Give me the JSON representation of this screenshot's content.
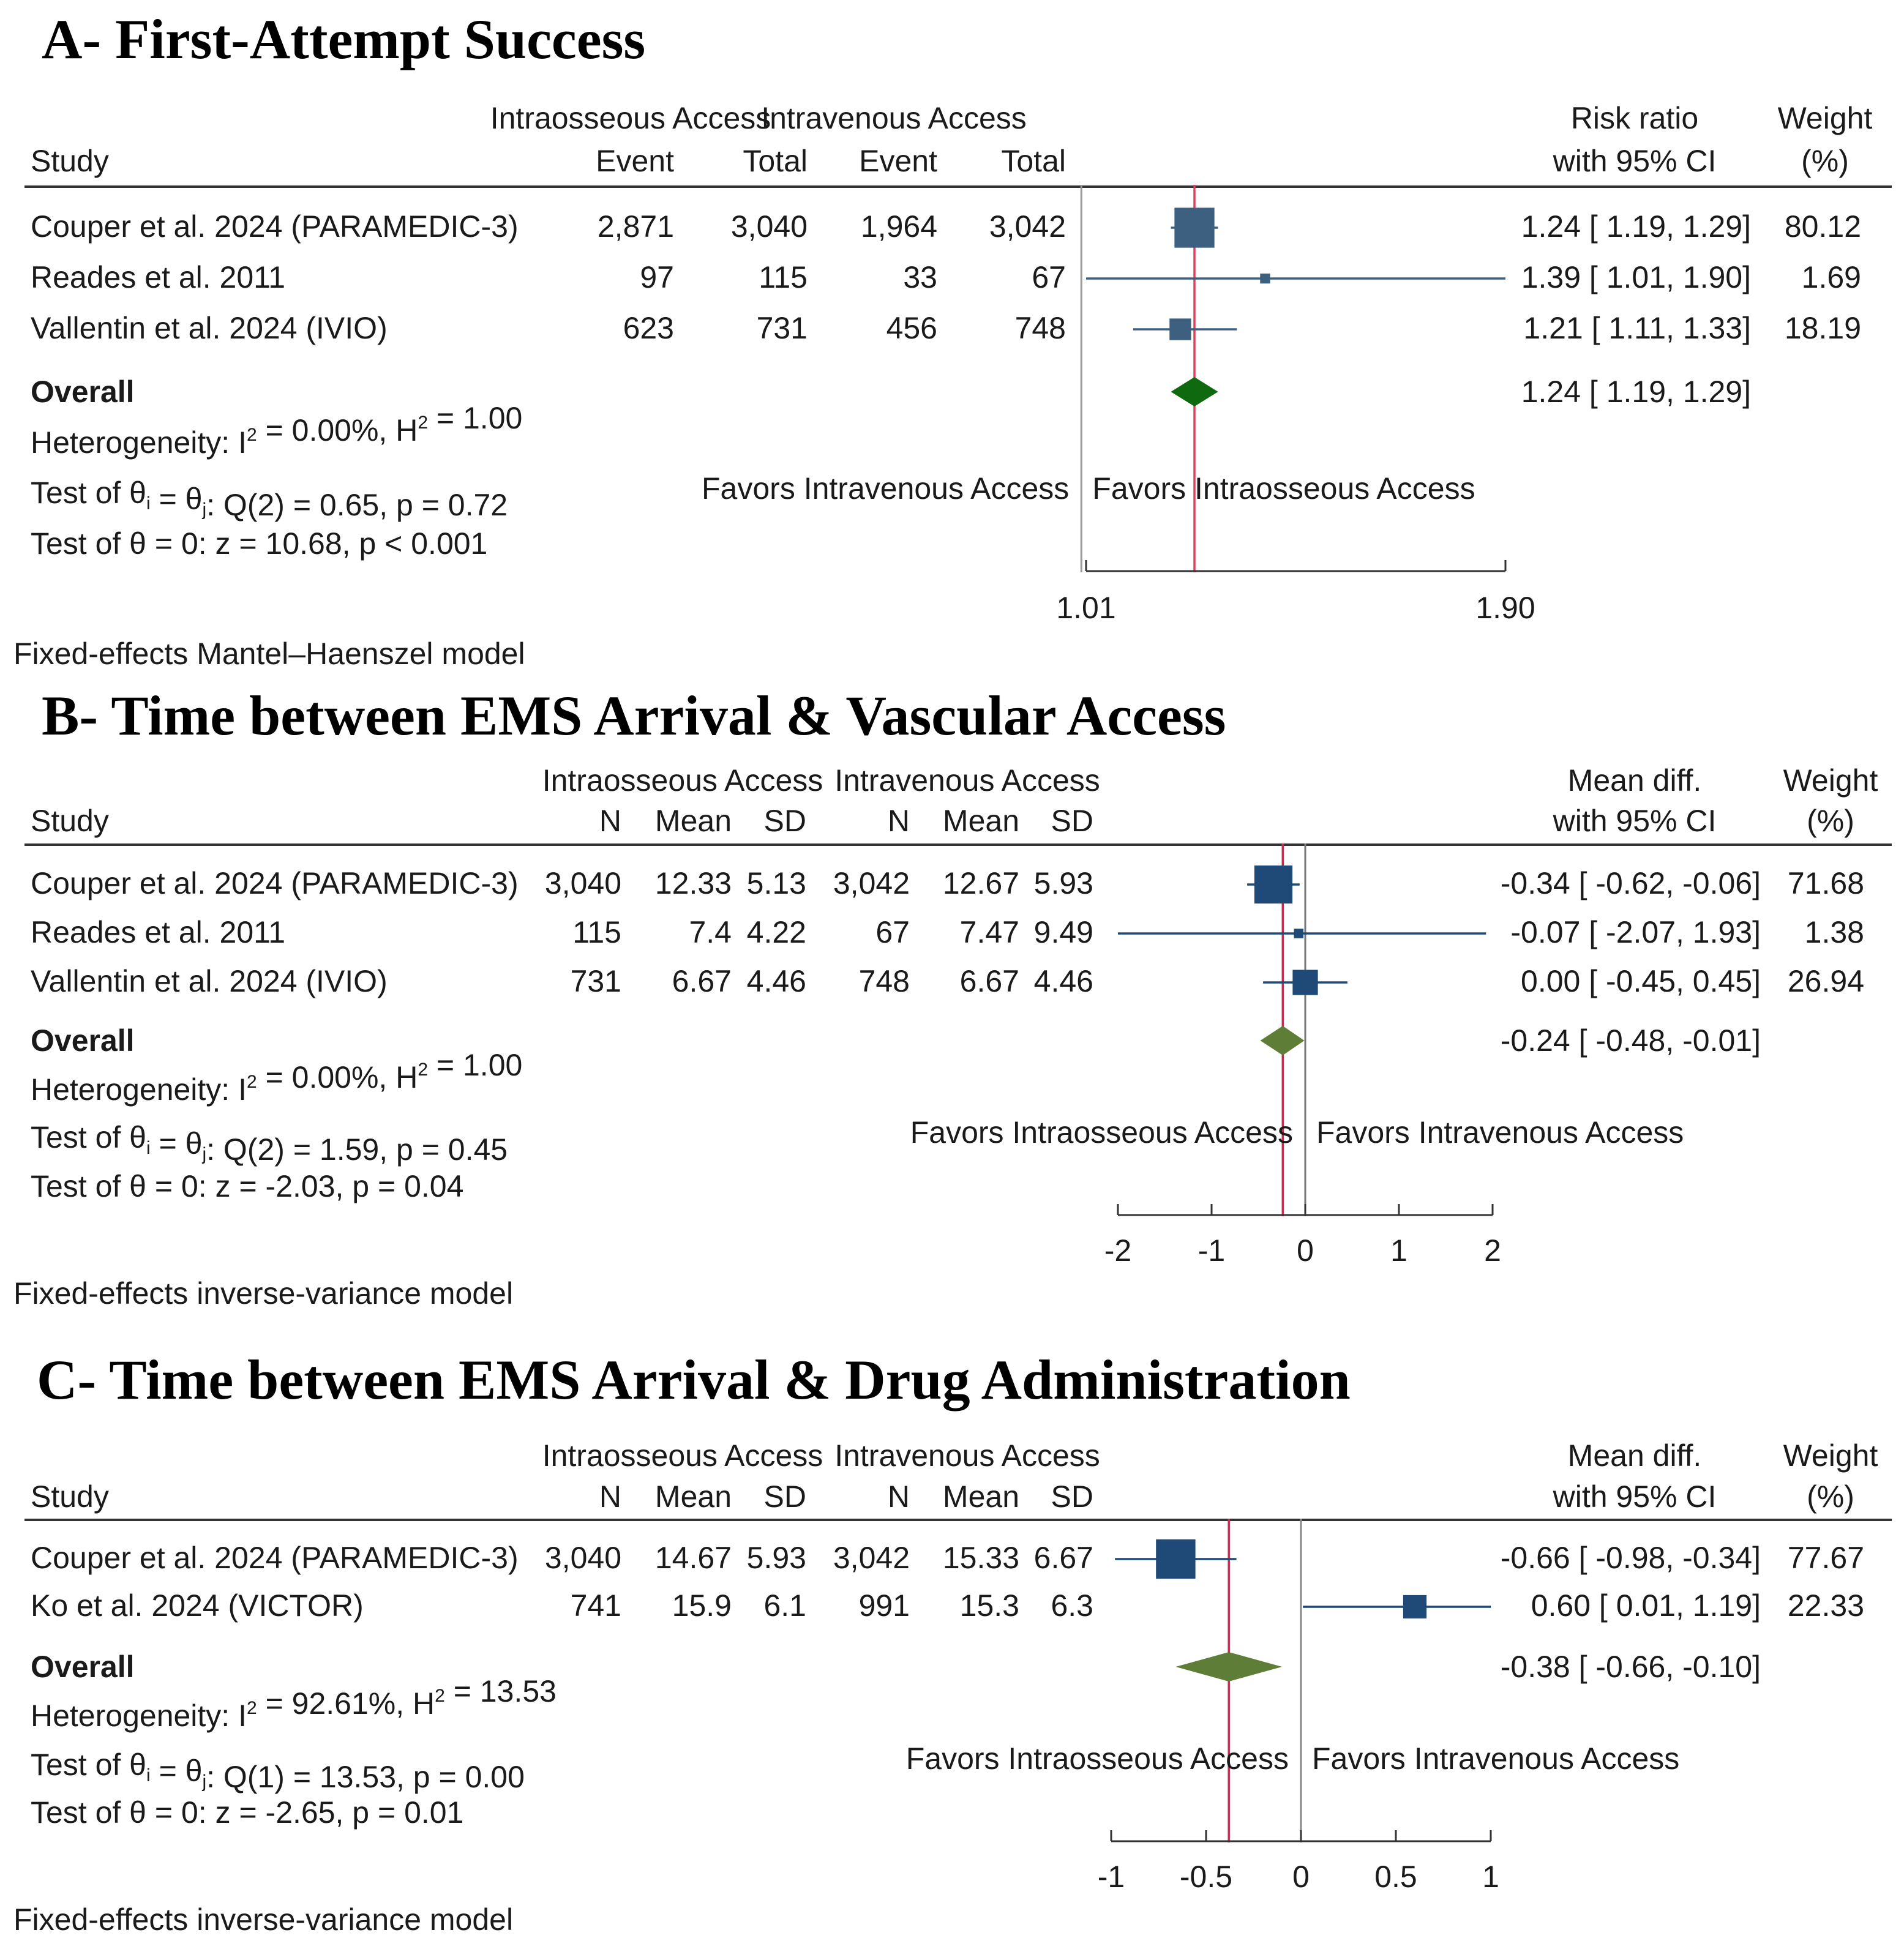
{
  "chart_data": [
    {
      "type": "forest",
      "title": "A- First-Attempt Success",
      "group1_label": "Intraosseous Access",
      "group2_label": "Intravenous Access",
      "study_header": "Study",
      "col_labels": [
        "Event",
        "Total",
        "Event",
        "Total"
      ],
      "effect_header": [
        "Risk ratio",
        "with 95% CI"
      ],
      "weight_header": [
        "Weight",
        "(%)"
      ],
      "studies": [
        {
          "name": "Couper et al. 2024 (PARAMEDIC-3)",
          "cells": [
            "2,871",
            "3,040",
            "1,964",
            "3,042"
          ],
          "est": 1.24,
          "lo": 1.19,
          "hi": 1.29,
          "ci_text": "1.24 [ 1.19,  1.29]",
          "weight": 80.12,
          "weight_text": "80.12"
        },
        {
          "name": "Reades et al. 2011",
          "cells": [
            "97",
            "115",
            "33",
            "67"
          ],
          "est": 1.39,
          "lo": 1.01,
          "hi": 1.9,
          "ci_text": "1.39 [ 1.01,  1.90]",
          "weight": 1.69,
          "weight_text": "1.69"
        },
        {
          "name": "Vallentin et al. 2024 (IVIO)",
          "cells": [
            "623",
            "731",
            "456",
            "748"
          ],
          "est": 1.21,
          "lo": 1.11,
          "hi": 1.33,
          "ci_text": "1.21 [ 1.11,  1.33]",
          "weight": 18.19,
          "weight_text": "18.19"
        }
      ],
      "overall": {
        "label": "Overall",
        "est": 1.24,
        "lo": 1.19,
        "hi": 1.29,
        "ci_text": "1.24 [ 1.19,  1.29]"
      },
      "heterogeneity": {
        "prefix": "Heterogeneity: I",
        "sup1": "2",
        "mid": " = 0.00%, H",
        "sup2": "2",
        "suffix": " = 1.00"
      },
      "test_homog": {
        "prefix": "Test of θ",
        "sub1": "i",
        "mid": " = θ",
        "sub2": "j",
        "suffix": ": Q(2) = 0.65, p = 0.72"
      },
      "test_zero": "Test of θ = 0: z = 10.68, p < 0.001",
      "favors_left": "Favors Intravenous Access",
      "favors_right": "Favors Intraosseous Access",
      "favors_left_color": "#1a1a1a",
      "favors_right_color": "#1e8a1e",
      "x_ticks": [
        1.01,
        1.9
      ],
      "x_tick_labels": [
        "1.01",
        "1.90"
      ],
      "xlim": [
        1.01,
        1.9
      ],
      "null_line": 1,
      "marker_color": "#3d6080",
      "diamond_color": "#0f6a0f",
      "model_note": "Fixed-effects Mantel–Haenszel model"
    },
    {
      "type": "forest",
      "title": "B- Time between EMS Arrival & Vascular Access",
      "group1_label": "Intraosseous Access",
      "group2_label": "Intravenous Access",
      "study_header": "Study",
      "col_labels": [
        "N",
        "Mean",
        "SD",
        "N",
        "Mean",
        "SD"
      ],
      "effect_header": [
        "Mean diff.",
        "with 95% CI"
      ],
      "weight_header": [
        "Weight",
        "(%)"
      ],
      "studies": [
        {
          "name": "Couper et al. 2024 (PARAMEDIC-3)",
          "cells": [
            "3,040",
            "12.33",
            "5.13",
            "3,042",
            "12.67",
            "5.93"
          ],
          "est": -0.34,
          "lo": -0.62,
          "hi": -0.06,
          "ci_text": "-0.34 [ -0.62,  -0.06]",
          "weight": 71.68,
          "weight_text": "71.68"
        },
        {
          "name": "Reades et al. 2011",
          "cells": [
            "115",
            "7.4",
            "4.22",
            "67",
            "7.47",
            "9.49"
          ],
          "est": -0.07,
          "lo": -2.07,
          "hi": 1.93,
          "ci_text": "-0.07 [ -2.07,   1.93]",
          "weight": 1.38,
          "weight_text": "1.38"
        },
        {
          "name": "Vallentin et al. 2024 (IVIO)",
          "cells": [
            "731",
            "6.67",
            "4.46",
            "748",
            "6.67",
            "4.46"
          ],
          "est": 0.0,
          "lo": -0.45,
          "hi": 0.45,
          "ci_text": "0.00 [ -0.45,   0.45]",
          "weight": 26.94,
          "weight_text": "26.94"
        }
      ],
      "overall": {
        "label": "Overall",
        "est": -0.24,
        "lo": -0.48,
        "hi": -0.01,
        "ci_text": "-0.24 [ -0.48,  -0.01]"
      },
      "heterogeneity": {
        "prefix": "Heterogeneity: I",
        "sup1": "2",
        "mid": " = 0.00%, H",
        "sup2": "2",
        "suffix": " = 1.00"
      },
      "test_homog": {
        "prefix": "Test of θ",
        "sub1": "i",
        "mid": " = θ",
        "sub2": "j",
        "suffix": ": Q(2) = 1.59, p = 0.45"
      },
      "test_zero": "Test of θ = 0: z = -2.03, p = 0.04",
      "favors_left": "Favors Intraosseous Access",
      "favors_right": "Favors Intravenous Access",
      "favors_left_color": "#1e8a1e",
      "favors_right_color": "#1a1a1a",
      "x_ticks": [
        -2,
        -1,
        0,
        1,
        2
      ],
      "x_tick_labels": [
        "-2",
        "-1",
        "0",
        "1",
        "2"
      ],
      "xlim": [
        -2,
        2
      ],
      "null_line": 0,
      "marker_color": "#1f4a78",
      "diamond_color": "#5e7d36",
      "model_note": "Fixed-effects inverse-variance model"
    },
    {
      "type": "forest",
      "title": "C- Time between EMS Arrival & Drug Administration",
      "group1_label": "Intraosseous Access",
      "group2_label": "Intravenous Access",
      "study_header": "Study",
      "col_labels": [
        "N",
        "Mean",
        "SD",
        "N",
        "Mean",
        "SD"
      ],
      "effect_header": [
        "Mean diff.",
        "with 95% CI"
      ],
      "weight_header": [
        "Weight",
        "(%)"
      ],
      "studies": [
        {
          "name": "Couper et al. 2024 (PARAMEDIC-3)",
          "cells": [
            "3,040",
            "14.67",
            "5.93",
            "3,042",
            "15.33",
            "6.67"
          ],
          "est": -0.66,
          "lo": -0.98,
          "hi": -0.34,
          "ci_text": "-0.66 [ -0.98,  -0.34]",
          "weight": 77.67,
          "weight_text": "77.67"
        },
        {
          "name": "Ko et al. 2024 (VICTOR)",
          "cells": [
            "741",
            "15.9",
            "6.1",
            "991",
            "15.3",
            "6.3"
          ],
          "est": 0.6,
          "lo": 0.01,
          "hi": 1.19,
          "ci_text": "0.60 [  0.01,   1.19]",
          "weight": 22.33,
          "weight_text": "22.33"
        }
      ],
      "overall": {
        "label": "Overall",
        "est": -0.38,
        "lo": -0.66,
        "hi": -0.1,
        "ci_text": "-0.38 [ -0.66,  -0.10]"
      },
      "heterogeneity": {
        "prefix": "Heterogeneity: I",
        "sup1": "2",
        "mid": " = 92.61%, H",
        "sup2": "2",
        "suffix": " = 13.53"
      },
      "test_homog": {
        "prefix": "Test of θ",
        "sub1": "i",
        "mid": " = θ",
        "sub2": "j",
        "suffix": ": Q(1) = 13.53, p = 0.00"
      },
      "test_zero": "Test of θ = 0: z = -2.65, p = 0.01",
      "favors_left": "Favors Intraosseous Access",
      "favors_right": "Favors Intravenous Access",
      "favors_left_color": "#1e8a1e",
      "favors_right_color": "#1a1a1a",
      "x_ticks": [
        -1,
        -0.5,
        0,
        0.5,
        1
      ],
      "x_tick_labels": [
        "-1",
        "-0.5",
        "0",
        "0.5",
        "1"
      ],
      "xlim": [
        -1,
        1
      ],
      "null_line": 0,
      "marker_color": "#1f4a78",
      "diamond_color": "#5e7d36",
      "model_note": "Fixed-effects inverse-variance model"
    }
  ]
}
